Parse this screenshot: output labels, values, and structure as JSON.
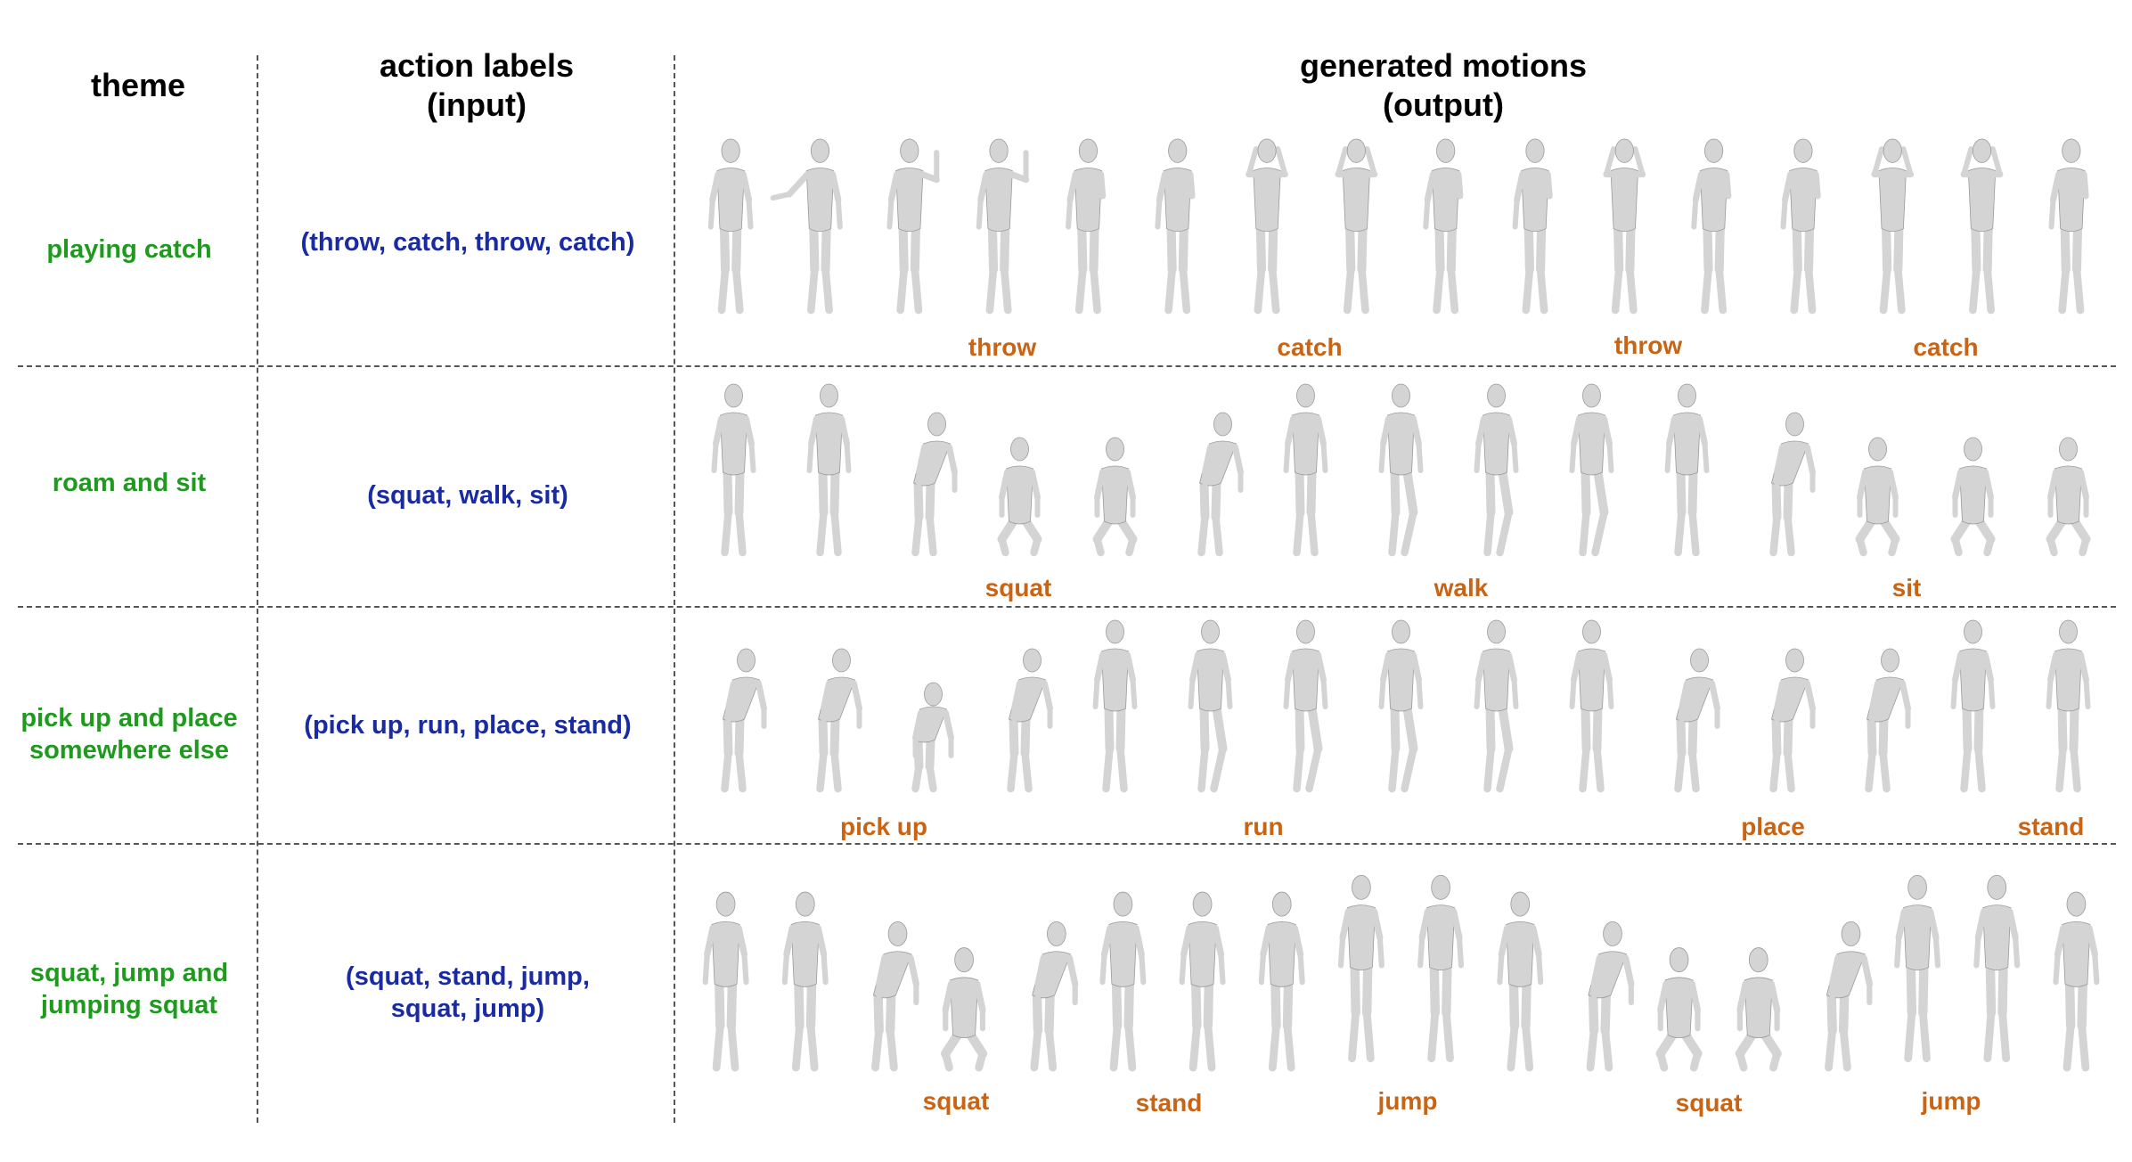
{
  "headers": {
    "theme": "theme",
    "labels_line1": "action labels",
    "labels_line2": "(input)",
    "motions_line1": "generated motions",
    "motions_line2": "(output)"
  },
  "rows": [
    {
      "theme_line1": "playing catch",
      "theme_line2": "",
      "labels_line1": "(throw, catch, throw, catch)",
      "labels_line2": "",
      "actions": [
        "throw",
        "catch",
        "throw",
        "catch"
      ],
      "poses": [
        "stand",
        "reach",
        "wave",
        "wave",
        "arm",
        "arm",
        "arms-up",
        "arms-up",
        "arm",
        "arm",
        "arms-up",
        "arm",
        "arm",
        "arms-up",
        "arms-up",
        "arm"
      ]
    },
    {
      "theme_line1": "roam and sit",
      "theme_line2": "",
      "labels_line1": "(squat, walk, sit)",
      "labels_line2": "",
      "actions": [
        "squat",
        "walk",
        "sit"
      ],
      "poses": [
        "stand",
        "stand",
        "bend",
        "squat",
        "squat",
        "bend",
        "stand",
        "walk",
        "walk",
        "walk",
        "stand",
        "bend",
        "squat",
        "squat",
        "squat"
      ]
    },
    {
      "theme_line1": "pick up and place",
      "theme_line2": "somewhere else",
      "labels_line1": "(pick up, run, place, stand)",
      "labels_line2": "",
      "actions": [
        "pick up",
        "run",
        "place",
        "stand"
      ],
      "poses": [
        "bend",
        "bend",
        "crouch",
        "bend",
        "stand",
        "walk",
        "walk",
        "walk",
        "walk",
        "stand",
        "bend",
        "bend",
        "bend",
        "stand",
        "stand"
      ]
    },
    {
      "theme_line1": "squat, jump and",
      "theme_line2": "jumping squat",
      "labels_line1": "(squat, stand, jump,",
      "labels_line2": "squat, jump)",
      "actions": [
        "squat",
        "stand",
        "jump",
        "squat",
        "jump"
      ],
      "poses": [
        "stand",
        "stand",
        "bend",
        "squat",
        "bend",
        "stand",
        "stand",
        "stand",
        "jump",
        "jump",
        "stand",
        "bend",
        "squat",
        "squat",
        "bend",
        "jump",
        "jump",
        "stand"
      ]
    }
  ],
  "colors": {
    "theme": "#1f9a1f",
    "labels": "#1a2aa0",
    "actions": "#c86414",
    "figure": "#d4d4d4"
  }
}
